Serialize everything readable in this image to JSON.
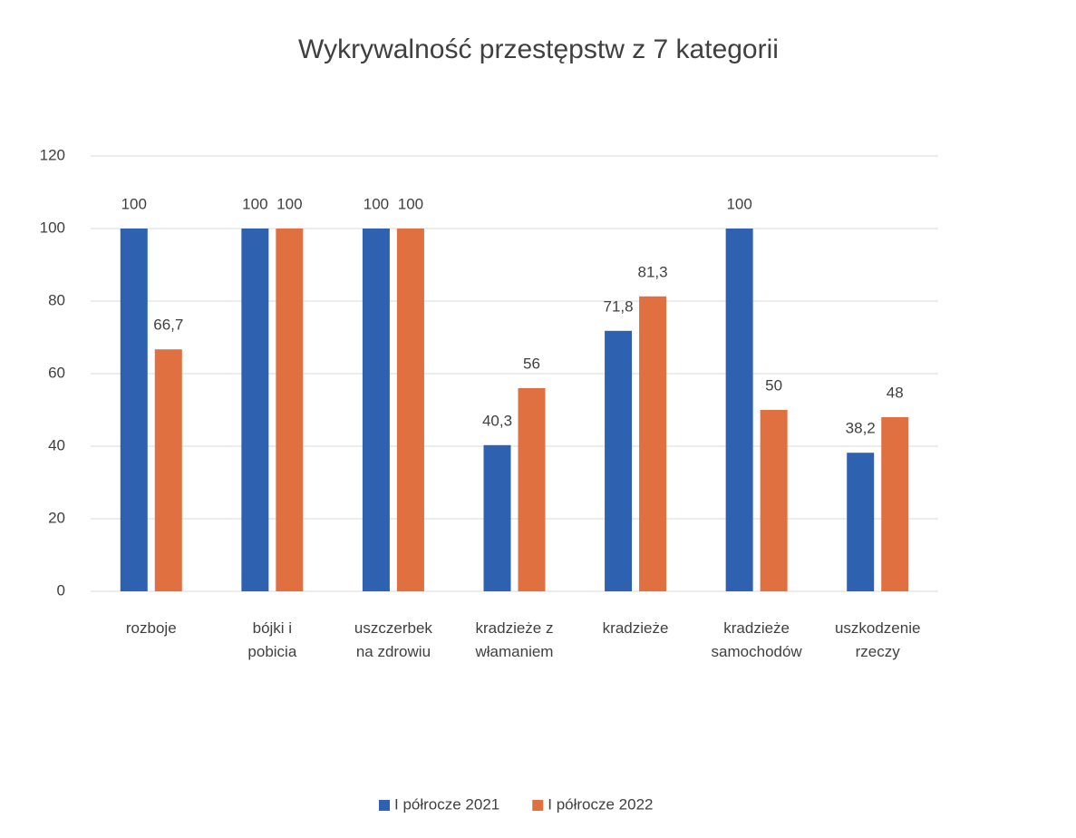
{
  "chart_data": {
    "type": "bar",
    "title": "Wykrywalność przestępstw z 7 kategorii",
    "categories": [
      "rozboje",
      "bójki i\npobicia",
      "uszczerbek\nna zdrowiu",
      "kradzieże z\nwłamaniem",
      "kradzieże",
      "kradzieże\nsamochodów",
      "uszkodzenie\nrzeczy"
    ],
    "series": [
      {
        "name": "I półrocze 2021",
        "color": "#2e62b0",
        "values": [
          100,
          100,
          100,
          40.3,
          71.8,
          100,
          38.2
        ],
        "value_labels": [
          "100",
          "100",
          "100",
          "40,3",
          "71,8",
          "100",
          "38,2"
        ]
      },
      {
        "name": "I półrocze 2022",
        "color": "#e0703f",
        "values": [
          66.7,
          100,
          100,
          56,
          81.3,
          50,
          48
        ],
        "value_labels": [
          "66,7",
          "100",
          "100",
          "56",
          "81,3",
          "50",
          "48"
        ]
      }
    ],
    "ylim": [
      0,
      120
    ],
    "yticks": [
      0,
      20,
      40,
      60,
      80,
      100,
      120
    ],
    "grid": true,
    "legend": "bottom"
  }
}
